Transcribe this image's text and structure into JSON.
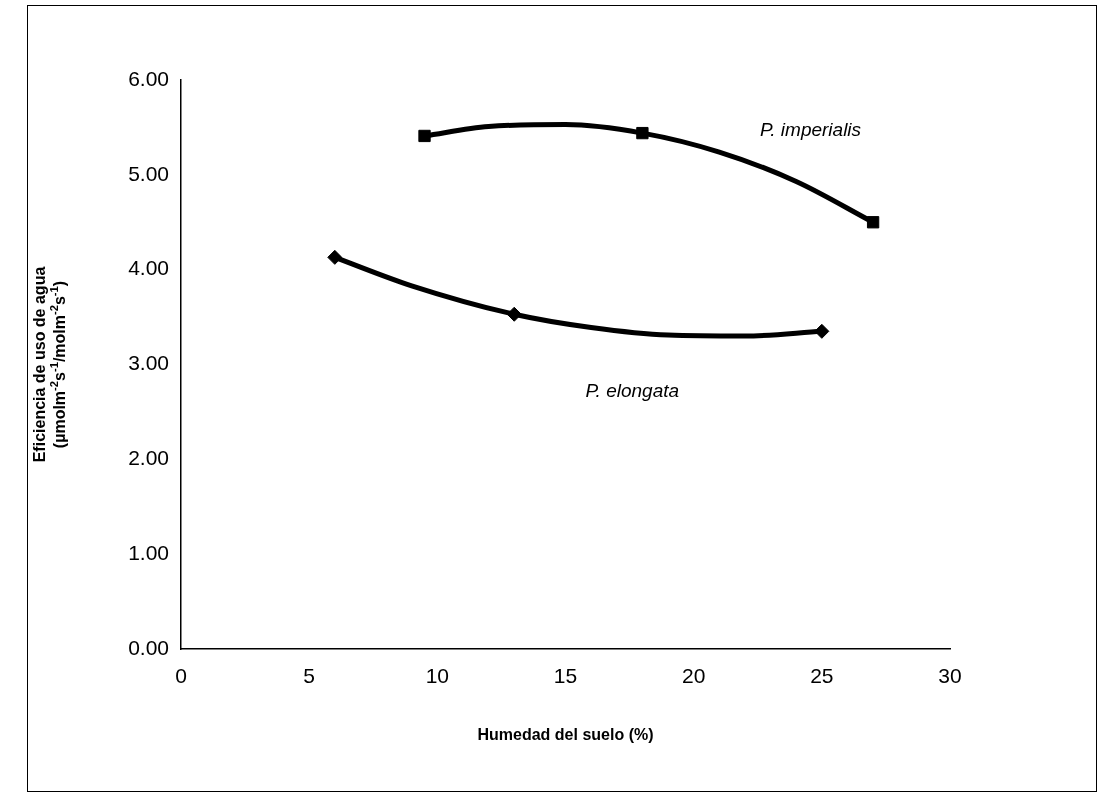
{
  "chart_data": {
    "type": "scatter",
    "xlabel": "Humedad del suelo (%)",
    "ylabel": "Eficiencia de uso de agua\n(µmolm$^{-2}$s$^{-1}$/molm$^{-2}$s$^{-1}$)",
    "xlim": [
      0,
      30
    ],
    "xticks": [
      0,
      5,
      10,
      15,
      20,
      25,
      30
    ],
    "ylim": [
      0,
      6
    ],
    "yticks": [
      {
        "value": 0,
        "label": "0.00"
      },
      {
        "value": 1,
        "label": "1.00"
      },
      {
        "value": 2,
        "label": "2.00"
      },
      {
        "value": 3,
        "label": "3.00"
      },
      {
        "value": 4,
        "label": "4.00"
      },
      {
        "value": 5,
        "label": "5.00"
      },
      {
        "value": 6,
        "label": "6.00"
      }
    ],
    "grid": false,
    "legend": false,
    "series": [
      {
        "marker": "square",
        "color": "#000000",
        "x": [
          9.5,
          18,
          27
        ],
        "values": [
          5.41,
          5.44,
          4.5
        ]
      },
      {
        "marker": "diamond",
        "color": "#000000",
        "x": [
          6,
          13,
          25
        ],
        "values": [
          4.13,
          3.53,
          3.35
        ]
      },
      {
        "type": "line",
        "marker": "none",
        "color": "#000000",
        "x": [
          9.5,
          12,
          15,
          18,
          21,
          24,
          27
        ],
        "values": [
          5.41,
          5.51,
          5.53,
          5.44,
          5.24,
          4.93,
          4.5
        ]
      },
      {
        "type": "line",
        "marker": "none",
        "color": "#000000",
        "x": [
          6,
          9,
          13,
          16,
          19,
          22,
          25
        ],
        "values": [
          4.13,
          3.83,
          3.53,
          3.39,
          3.31,
          3.3,
          3.35
        ]
      }
    ],
    "annotations": [
      "P. imperialis",
      "P. elongata"
    ]
  }
}
